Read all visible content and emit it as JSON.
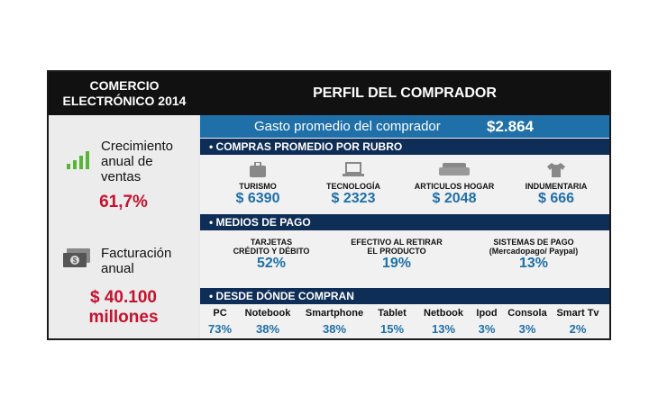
{
  "header": {
    "left_line1": "COMERCIO",
    "left_line2": "ELECTRÓNICO 2014",
    "right_title": "PERFIL DEL COMPRADOR"
  },
  "left": {
    "growth": {
      "label_line1": "Crecimiento",
      "label_line2": "anual de",
      "label_line3": "ventas",
      "value": "61,7%",
      "icon": "bar-chart-icon"
    },
    "billing": {
      "label_line1": "Facturación",
      "label_line2": "anual",
      "value_line1": "$ 40.100",
      "value_line2": "millones",
      "icon": "money-icon"
    }
  },
  "gasto": {
    "label": "Gasto promedio del comprador",
    "value": "$2.864"
  },
  "sections": {
    "rubro": "• COMPRAS PROMEDIO POR RUBRO",
    "pago": "• MEDIOS DE PAGO",
    "donde": "• DESDE DÓNDE COMPRAN"
  },
  "rubros": [
    {
      "name": "TURISMO",
      "value": "$ 6390",
      "icon": "suitcase-icon"
    },
    {
      "name": "TECNOLOGÍA",
      "value": "$ 2323",
      "icon": "laptop-icon"
    },
    {
      "name": "ARTICULOS HOGAR",
      "value": "$ 2048",
      "icon": "sofa-icon"
    },
    {
      "name": "INDUMENTARIA",
      "value": "$ 666",
      "icon": "tshirt-icon"
    }
  ],
  "pagos": [
    {
      "line1": "TARJETAS",
      "line2": "CRÉDITO Y DÉBITO",
      "value": "52%"
    },
    {
      "line1": "EFECTIVO AL RETIRAR",
      "line2": "EL PRODUCTO",
      "value": "19%"
    },
    {
      "line1": "SISTEMAS DE PAGO",
      "line2": "(Mercadopago/ Paypal)",
      "value": "13%"
    }
  ],
  "dispositivos": [
    {
      "name": "PC",
      "value": "73%"
    },
    {
      "name": "Notebook",
      "value": "38%"
    },
    {
      "name": "Smartphone",
      "value": "38%"
    },
    {
      "name": "Tablet",
      "value": "15%"
    },
    {
      "name": "Netbook",
      "value": "13%"
    },
    {
      "name": "Ipod",
      "value": "3%"
    },
    {
      "name": "Consola",
      "value": "3%"
    },
    {
      "name": "Smart Tv",
      "value": "2%"
    }
  ],
  "colors": {
    "blue_accent": "#1f6fa8",
    "navy": "#0e2d57",
    "red": "#c8102e",
    "green": "#5ab43a"
  }
}
